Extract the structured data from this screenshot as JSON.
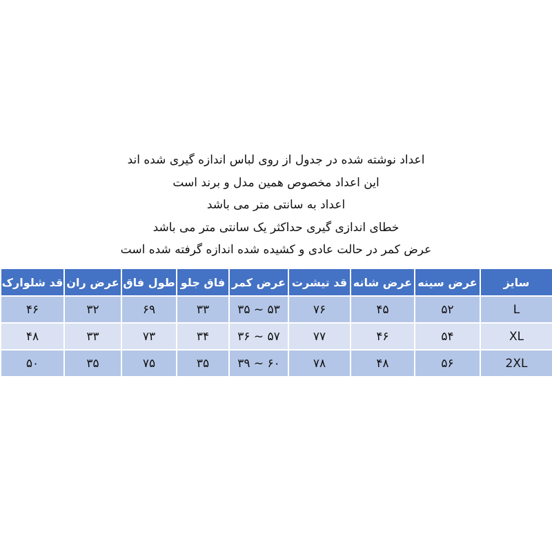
{
  "notes": [
    "اعداد نوشته شده در جدول از روی لباس اندازه گیری شده اند",
    "این اعداد مخصوص همین مدل و برند است",
    "اعداد به سانتی متر می باشد",
    "خطای اندازی گیری حداکثر یک سانتی متر می باشد",
    "عرض کمر در حالت عادی و کشیده شده اندازه گرفته شده است"
  ],
  "table": {
    "headers": [
      "سایز",
      "عرض سینه",
      "عرض شانه",
      "قد تیشرت",
      "عرض کمر",
      "فاق جلو",
      "طول فاق",
      "عرض ران",
      "قد شلوارک"
    ],
    "rows": [
      [
        "L",
        "۵۲",
        "۴۵",
        "۷۶",
        "۳۵ ~ ۵۳",
        "۳۳",
        "۶۹",
        "۳۲",
        "۴۶"
      ],
      [
        "XL",
        "۵۴",
        "۴۶",
        "۷۷",
        "۳۶ ~ ۵۷",
        "۳۴",
        "۷۳",
        "۳۳",
        "۴۸"
      ],
      [
        "2XL",
        "۵۶",
        "۴۸",
        "۷۸",
        "۳۹ ~ ۶۰",
        "۳۵",
        "۷۵",
        "۳۵",
        "۵۰"
      ]
    ]
  },
  "colors": {
    "header": "#4472C4",
    "row_dark": "#B4C6E7",
    "row_light": "#D9E1F2"
  }
}
